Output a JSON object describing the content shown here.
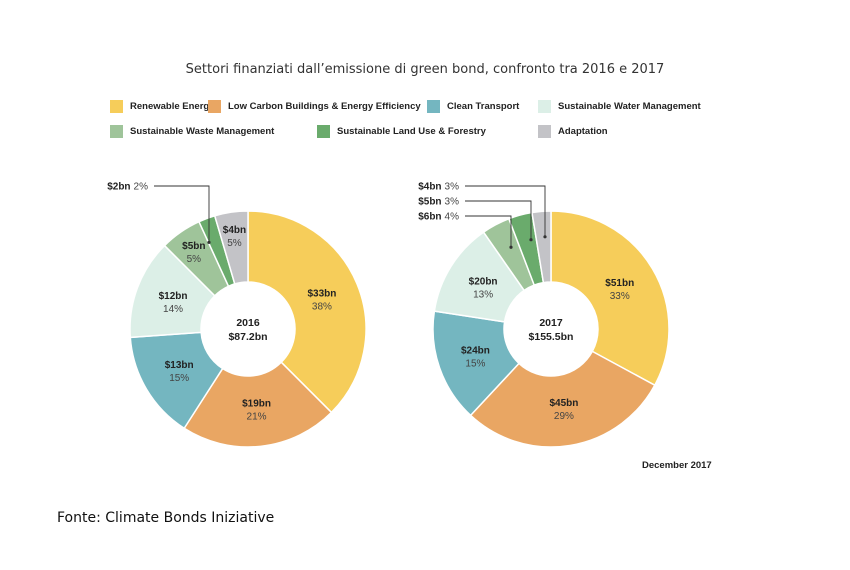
{
  "chart_data": {
    "type": "pie",
    "title": "Settori finanziati dall’emissione di green bond, confronto tra 2016 e 2017",
    "legend": [
      {
        "name": "Renewable Energy",
        "color": "#f6cd5a"
      },
      {
        "name": "Low Carbon Buildings & Energy Efficiency",
        "color": "#e9a663"
      },
      {
        "name": "Clean Transport",
        "color": "#74b6c0"
      },
      {
        "name": "Sustainable Water Management",
        "color": "#dcefe7"
      },
      {
        "name": "Sustainable Waste Management",
        "color": "#9fc49a"
      },
      {
        "name": "Sustainable Land Use & Forestry",
        "color": "#6aab6c"
      },
      {
        "name": "Adaptation",
        "color": "#c3c3c7"
      }
    ],
    "legend_placement": "top",
    "charts": [
      {
        "year": "2016",
        "total": "$87.2bn",
        "slices": [
          {
            "sector": "Renewable Energy",
            "value": 33,
            "amount": "$33bn",
            "percent": "38%"
          },
          {
            "sector": "Low Carbon Buildings & Energy Efficiency",
            "value": 19,
            "amount": "$19bn",
            "percent": "21%"
          },
          {
            "sector": "Clean Transport",
            "value": 13,
            "amount": "$13bn",
            "percent": "15%"
          },
          {
            "sector": "Sustainable Water Management",
            "value": 12,
            "amount": "$12bn",
            "percent": "14%"
          },
          {
            "sector": "Sustainable Waste Management",
            "value": 5,
            "amount": "$5bn",
            "percent": "5%"
          },
          {
            "sector": "Sustainable Land Use & Forestry",
            "value": 2,
            "amount": "$2bn",
            "percent": "2%"
          },
          {
            "sector": "Adaptation",
            "value": 4,
            "amount": "$4bn",
            "percent": "5%"
          }
        ]
      },
      {
        "year": "2017",
        "total": "$155.5bn",
        "slices": [
          {
            "sector": "Renewable Energy",
            "value": 51,
            "amount": "$51bn",
            "percent": "33%"
          },
          {
            "sector": "Low Carbon Buildings & Energy Efficiency",
            "value": 45,
            "amount": "$45bn",
            "percent": "29%"
          },
          {
            "sector": "Clean Transport",
            "value": 24,
            "amount": "$24bn",
            "percent": "15%"
          },
          {
            "sector": "Sustainable Water Management",
            "value": 20,
            "amount": "$20bn",
            "percent": "13%"
          },
          {
            "sector": "Sustainable Waste Management",
            "value": 6,
            "amount": "$6bn",
            "percent": "4%"
          },
          {
            "sector": "Sustainable Land Use & Forestry",
            "value": 5,
            "amount": "$5bn",
            "percent": "3%"
          },
          {
            "sector": "Adaptation",
            "value": 4,
            "amount": "$4bn",
            "percent": "3%"
          }
        ]
      }
    ]
  },
  "note": "December 2017",
  "source": "Fonte: Climate Bonds Iniziative"
}
